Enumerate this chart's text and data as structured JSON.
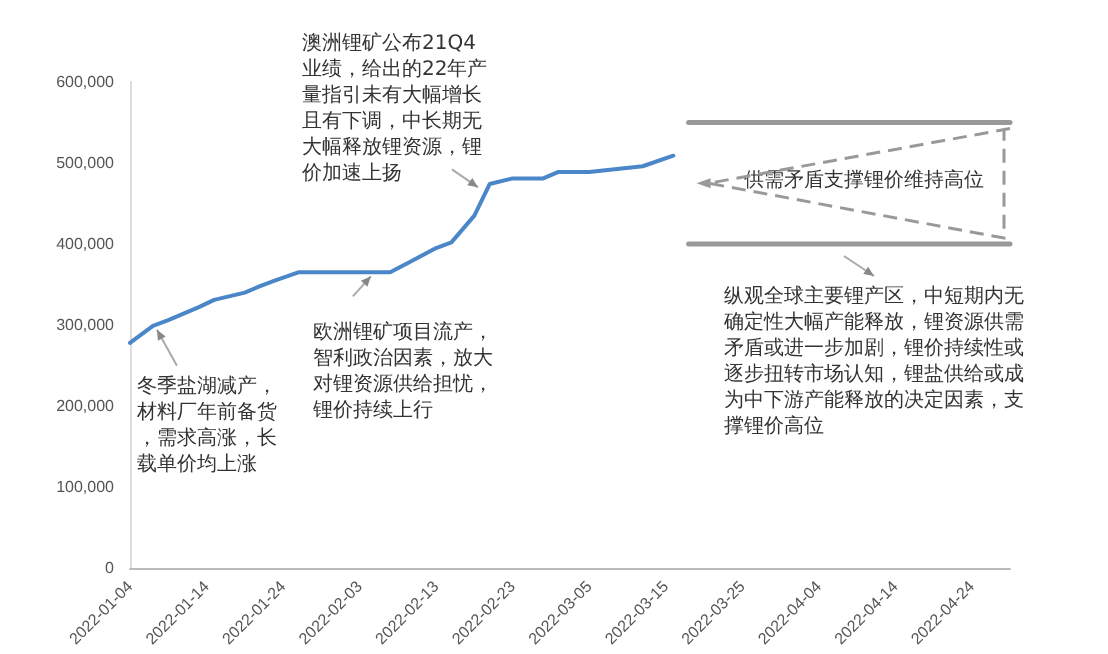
{
  "chart_data": {
    "type": "line",
    "x": [
      "2022-01-04",
      "2022-01-07",
      "2022-01-09",
      "2022-01-13",
      "2022-01-15",
      "2022-01-19",
      "2022-01-21",
      "2022-01-23",
      "2022-01-26",
      "2022-02-07",
      "2022-02-10",
      "2022-02-13",
      "2022-02-15",
      "2022-02-18",
      "2022-02-20",
      "2022-02-23",
      "2022-02-27",
      "2022-03-01",
      "2022-03-05",
      "2022-03-12",
      "2022-03-16"
    ],
    "series": [
      {
        "color": "#4a86c8",
        "values": [
          278000,
          299000,
          306000,
          322000,
          331000,
          340000,
          348000,
          355000,
          365000,
          365000,
          380000,
          395000,
          402000,
          435000,
          474000,
          481000,
          481000,
          489000,
          489000,
          496000,
          509000
        ]
      },
      {
        "color": "#999999",
        "x": [
          "2022-03-18",
          "2022-04-29"
        ],
        "values": [
          550000,
          550000
        ]
      },
      {
        "color": "#999999",
        "x": [
          "2022-03-18",
          "2022-04-29"
        ],
        "values": [
          400000,
          400000
        ]
      }
    ],
    "xlim": [
      "2022-01-04",
      "2022-04-29"
    ],
    "xticks": [
      {
        "value": "2022-01-04",
        "label": "2022-01-04"
      },
      {
        "value": "2022-01-14",
        "label": "2022-01-14"
      },
      {
        "value": "2022-01-24",
        "label": "2022-01-24"
      },
      {
        "value": "2022-02-03",
        "label": "2022-02-03"
      },
      {
        "value": "2022-02-13",
        "label": "2022-02-13"
      },
      {
        "value": "2022-02-23",
        "label": "2022-02-23"
      },
      {
        "value": "2022-03-05",
        "label": "2022-03-05"
      },
      {
        "value": "2022-03-15",
        "label": "2022-03-15"
      },
      {
        "value": "2022-03-25",
        "label": "2022-03-25"
      },
      {
        "value": "2022-04-04",
        "label": "2022-04-04"
      },
      {
        "value": "2022-04-14",
        "label": "2022-04-14"
      },
      {
        "value": "2022-04-24",
        "label": "2022-04-24"
      }
    ],
    "ylim": [
      0,
      600000
    ],
    "yticks": [
      {
        "value": 0,
        "label": "0"
      },
      {
        "value": 100000,
        "label": "100,000"
      },
      {
        "value": 200000,
        "label": "200,000"
      },
      {
        "value": 300000,
        "label": "300,000"
      },
      {
        "value": 400000,
        "label": "400,000"
      },
      {
        "value": 500000,
        "label": "500,000"
      },
      {
        "value": 600000,
        "label": "600,000"
      }
    ],
    "marker": "none",
    "line_style": "solid",
    "annotations": [
      {
        "text": "冬季盐湖减产，材料厂年前备货，需求高涨，长载单价均上涨",
        "x": "2022-01-07",
        "y": 299000
      },
      {
        "text": "欧洲锂矿项目流产，智利政治因素，放大对锂资源供给担忧，锂价持续上行",
        "x": "2022-02-05",
        "y": 365000
      },
      {
        "text": "澳洲锂矿公布21Q4业绩，给出的22年产量指引未有大幅增长且有下调，中长期无大幅释放锂资源，锂价加速上扬",
        "x": "2022-02-19",
        "y": 465000
      },
      "纵观全球主要锂产区，中短期内无确定性大幅产能释放，锂资源供需矛盾或进一步加剧，锂价持续性或逐步扭转市场认知，锂盐供给或成为中下游产能释放的决定因素，支撑锂价高位",
      "供需矛盾支撑锂价维持高位"
    ]
  }
}
